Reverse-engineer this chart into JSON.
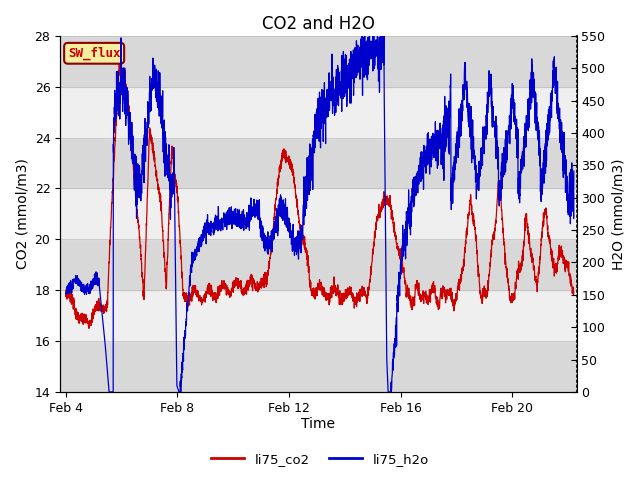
{
  "title": "CO2 and H2O",
  "xlabel": "Time",
  "ylabel_left": "CO2 (mmol/m3)",
  "ylabel_right": "H2O (mmol/m3)",
  "ylim_left": [
    14,
    28
  ],
  "ylim_right": [
    0,
    550
  ],
  "yticks_left": [
    14,
    16,
    18,
    20,
    22,
    24,
    26,
    28
  ],
  "yticks_right": [
    0,
    50,
    100,
    150,
    200,
    250,
    300,
    350,
    400,
    450,
    500,
    550
  ],
  "xtick_labels": [
    "Feb 4",
    "Feb 8",
    "Feb 12",
    "Feb 16",
    "Feb 20"
  ],
  "xtick_positions": [
    4,
    8,
    12,
    16,
    20
  ],
  "xmin": 3.8,
  "xmax": 22.3,
  "sw_flux_label": "SW_flux",
  "legend_labels": [
    "li75_co2",
    "li75_h2o"
  ],
  "line_colors": [
    "#cc0000",
    "#0000cc"
  ],
  "background_color": "#ffffff",
  "band_color_dark": "#d8d8d8",
  "band_color_light": "#efefef",
  "title_fontsize": 12,
  "axis_label_fontsize": 10,
  "tick_fontsize": 9
}
